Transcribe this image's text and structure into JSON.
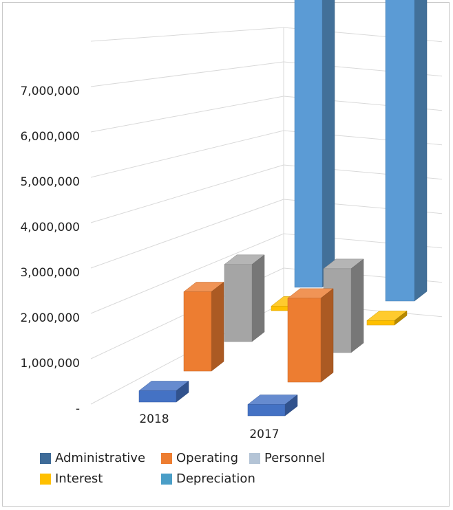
{
  "chart_data": {
    "type": "bar",
    "subtype": "3d-clustered-column",
    "title": "",
    "xlabel": "",
    "ylabel": "",
    "categories": [
      "2018",
      "2017"
    ],
    "series": [
      {
        "name": "Administrative",
        "values": [
          250000,
          250000
        ]
      },
      {
        "name": "Operating",
        "values": [
          1750000,
          1850000
        ]
      },
      {
        "name": "Personnel",
        "values": [
          1700000,
          1850000
        ]
      },
      {
        "name": "Interest",
        "values": [
          100000,
          100000
        ]
      },
      {
        "name": "Depreciation",
        "values": [
          7300000,
          7350000
        ]
      }
    ],
    "y_ticks": [
      "-",
      "1,000,000",
      "2,000,000",
      "3,000,000",
      "4,000,000",
      "5,000,000",
      "6,000,000",
      "7,000,000"
    ],
    "ylim": [
      0,
      8000000
    ],
    "grid": true,
    "legend_position": "bottom",
    "colors": {
      "Administrative": "#4472c4",
      "Operating": "#ed7d31",
      "Personnel": "#a5a5a5",
      "Interest": "#ffc000",
      "Depreciation": "#5b9bd5"
    },
    "legend_colors": {
      "Administrative": "#3e6b98",
      "Operating": "#ed7d31",
      "Personnel": "#b4c4d6",
      "Interest": "#ffc000",
      "Depreciation": "#4a9ec7"
    }
  }
}
